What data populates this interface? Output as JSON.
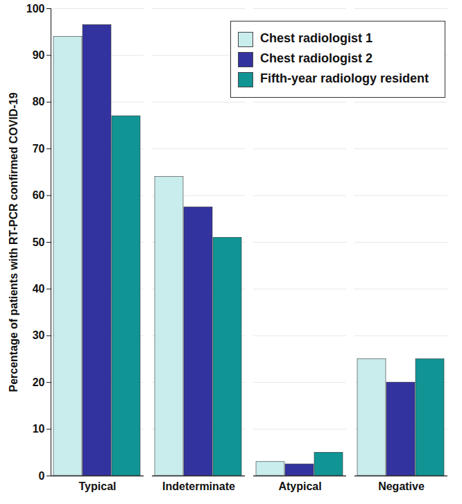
{
  "chart_data": {
    "type": "bar",
    "ylabel": "Percentage of patients with RT-PCR confirmed COVID-19",
    "categories": [
      "Typical",
      "Indeterminate",
      "Atypical",
      "Negative"
    ],
    "series": [
      {
        "name": "Chest radiologist 1",
        "color": "#c9ecec",
        "values": [
          94,
          64,
          3,
          25
        ]
      },
      {
        "name": "Chest radiologist 2",
        "color": "#3333a0",
        "values": [
          96.5,
          57.5,
          2.5,
          20
        ]
      },
      {
        "name": "Fifth-year radiology resident",
        "color": "#119494",
        "values": [
          77,
          51,
          5,
          25
        ]
      }
    ],
    "ylim": [
      0,
      100
    ],
    "yticks": [
      0,
      10,
      20,
      30,
      40,
      50,
      60,
      70,
      80,
      90,
      100
    ],
    "grid": true,
    "legend": "top-right"
  }
}
